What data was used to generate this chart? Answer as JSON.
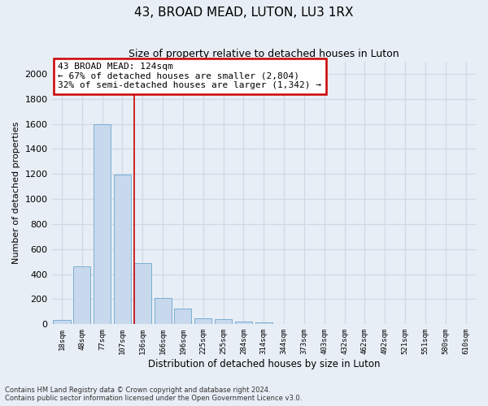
{
  "title": "43, BROAD MEAD, LUTON, LU3 1RX",
  "subtitle": "Size of property relative to detached houses in Luton",
  "xlabel": "Distribution of detached houses by size in Luton",
  "ylabel": "Number of detached properties",
  "bar_fill": "#c8d8ed",
  "bar_edge": "#7aafd4",
  "categories": [
    "18sqm",
    "48sqm",
    "77sqm",
    "107sqm",
    "136sqm",
    "166sqm",
    "196sqm",
    "225sqm",
    "255sqm",
    "284sqm",
    "314sqm",
    "344sqm",
    "373sqm",
    "403sqm",
    "432sqm",
    "462sqm",
    "492sqm",
    "521sqm",
    "551sqm",
    "580sqm",
    "610sqm"
  ],
  "values": [
    35,
    460,
    1600,
    1195,
    490,
    210,
    125,
    45,
    38,
    22,
    15,
    0,
    0,
    0,
    0,
    0,
    0,
    0,
    0,
    0,
    0
  ],
  "vline_color": "#cc0000",
  "vline_x": 3.58,
  "annotation_text": "43 BROAD MEAD: 124sqm\n← 67% of detached houses are smaller (2,804)\n32% of semi-detached houses are larger (1,342) →",
  "box_facecolor": "#ffffff",
  "box_edgecolor": "#cc0000",
  "ylim_max": 2100,
  "yticks": [
    0,
    200,
    400,
    600,
    800,
    1000,
    1200,
    1400,
    1600,
    1800,
    2000
  ],
  "bg_color": "#e8eef5",
  "grid_color": "#d0dae8",
  "footnote": "Contains HM Land Registry data © Crown copyright and database right 2024.\nContains public sector information licensed under the Open Government Licence v3.0."
}
